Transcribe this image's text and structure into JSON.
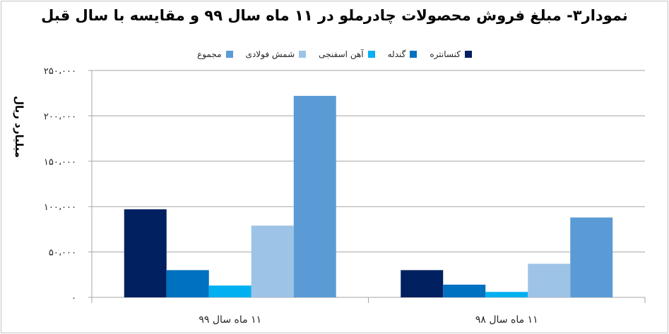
{
  "chart_data": {
    "type": "bar",
    "title": "نمودار۳- مبلغ فروش محصولات چادرملو در ۱۱ ماه سال ۹۹ و مقایسه با سال قبل",
    "ylabel": "میلیارد ریال",
    "xlabel": "",
    "ylim": [
      0,
      250000
    ],
    "yticks": [
      0,
      50000,
      100000,
      150000,
      200000,
      250000
    ],
    "ytick_labels": [
      "۰",
      "۵۰،۰۰۰",
      "۱۰۰،۰۰۰",
      "۱۵۰،۰۰۰",
      "۲۰۰،۰۰۰",
      "۲۵۰،۰۰۰"
    ],
    "categories": [
      "۱۱ ماه سال ۹۹",
      "۱۱ ماه سال ۹۸"
    ],
    "grid": true,
    "legend_position": "top",
    "series": [
      {
        "name": "کنسانتره",
        "color": "#002060",
        "values": [
          97000,
          30000
        ]
      },
      {
        "name": "گندله",
        "color": "#0070c0",
        "values": [
          30000,
          14000
        ]
      },
      {
        "name": "آهن اسفنجی",
        "color": "#00b0f0",
        "values": [
          13000,
          6000
        ]
      },
      {
        "name": "شمش فولادی",
        "color": "#9dc3e6",
        "values": [
          79000,
          37000
        ]
      },
      {
        "name": "مجموع",
        "color": "#5b9bd5",
        "values": [
          222000,
          88000
        ]
      }
    ]
  }
}
